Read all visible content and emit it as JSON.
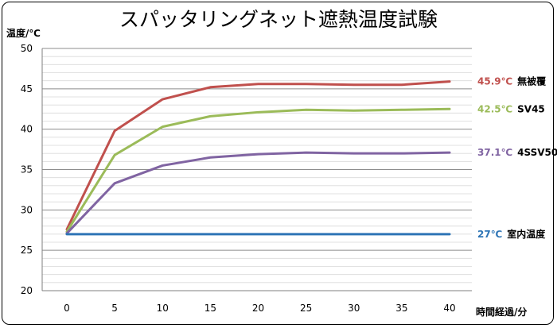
{
  "chart_data": {
    "type": "line",
    "title": "スパッタリングネット遮熱温度試験",
    "xlabel": "時間経過/分",
    "ylabel": "温度/℃",
    "x": [
      0,
      5,
      10,
      15,
      20,
      25,
      30,
      35,
      40
    ],
    "ylim": [
      20,
      50
    ],
    "yticks": [
      20,
      25,
      30,
      35,
      40,
      45,
      50
    ],
    "grid": true,
    "minor_grid_step": 1,
    "series": [
      {
        "name": "無被覆",
        "end_label": "45.9℃",
        "color": "#c0504d",
        "values": [
          27.6,
          39.8,
          43.7,
          45.2,
          45.6,
          45.6,
          45.5,
          45.5,
          45.9
        ]
      },
      {
        "name": "SV45",
        "end_label": "42.5℃",
        "color": "#9bbb59",
        "values": [
          27.3,
          36.8,
          40.3,
          41.6,
          42.1,
          42.4,
          42.3,
          42.4,
          42.5
        ]
      },
      {
        "name": "4SSV50",
        "end_label": "37.1℃",
        "color": "#8064a2",
        "values": [
          27.1,
          33.3,
          35.5,
          36.5,
          36.9,
          37.1,
          37.0,
          37.0,
          37.1
        ]
      },
      {
        "name": "室内温度",
        "end_label": "27℃",
        "color": "#2e75b6",
        "values": [
          27,
          27,
          27,
          27,
          27,
          27,
          27,
          27,
          27
        ]
      }
    ]
  }
}
